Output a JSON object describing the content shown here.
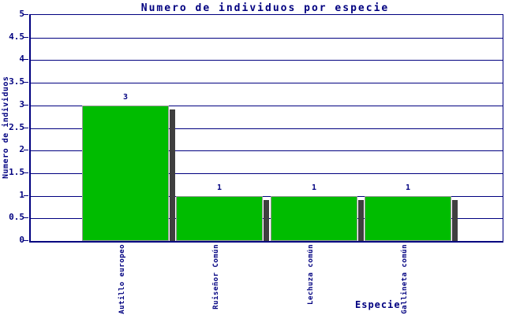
{
  "chart_data": {
    "type": "bar",
    "title": "Numero de individuos por especie",
    "xlabel": "Especie",
    "ylabel": "Numero de individuos",
    "categories": [
      "Autillo europeo",
      "Ruiseñor Común",
      "Lechuza común",
      "Gallineta común"
    ],
    "values": [
      3,
      1,
      1,
      1
    ],
    "value_labels": [
      "3",
      "1",
      "1",
      "1"
    ],
    "ylim": [
      0,
      5
    ],
    "ytick_step": 0.5,
    "yticks": [
      0,
      0.5,
      1,
      1.5,
      2,
      2.5,
      3,
      3.5,
      4,
      4.5,
      5
    ],
    "ytick_labels": [
      "0",
      "0.5",
      "1",
      "1.5",
      "2",
      "2.5",
      "3",
      "3.5",
      "4",
      "4.5",
      "5"
    ],
    "grid": true,
    "legend": "none",
    "colors": {
      "bar_fill": "#00bc00",
      "bar_border": "#999999",
      "bar_shadow": "#3f3f3f",
      "axis": "#000080",
      "grid": "#000080",
      "text": "#000080",
      "background": "#ffffff"
    }
  }
}
